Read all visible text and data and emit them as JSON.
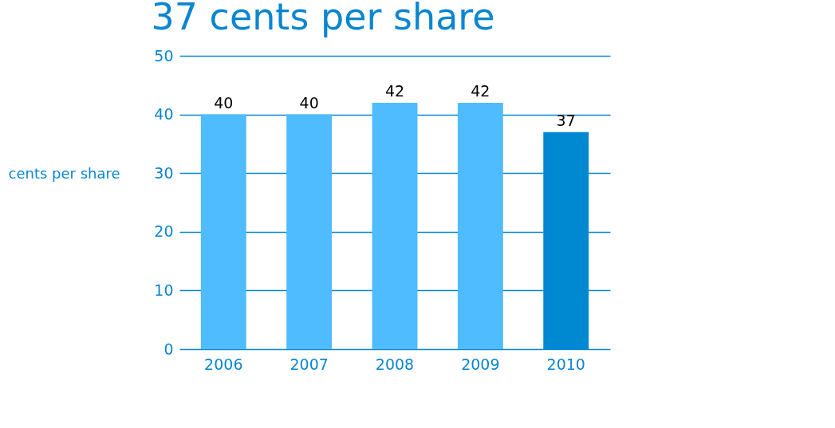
{
  "chart_data": {
    "type": "bar",
    "title": "37 cents per share",
    "ylabel": "cents per share",
    "categories": [
      "2006",
      "2007",
      "2008",
      "2009",
      "2010"
    ],
    "values": [
      40,
      40,
      42,
      42,
      37
    ],
    "colors": [
      "#4fbcff",
      "#4fbcff",
      "#4fbcff",
      "#4fbcff",
      "#0088d1"
    ],
    "ylim": [
      0,
      50
    ],
    "yticks": [
      0,
      10,
      20,
      30,
      40,
      50
    ],
    "grid": "y",
    "data_labels": true
  }
}
